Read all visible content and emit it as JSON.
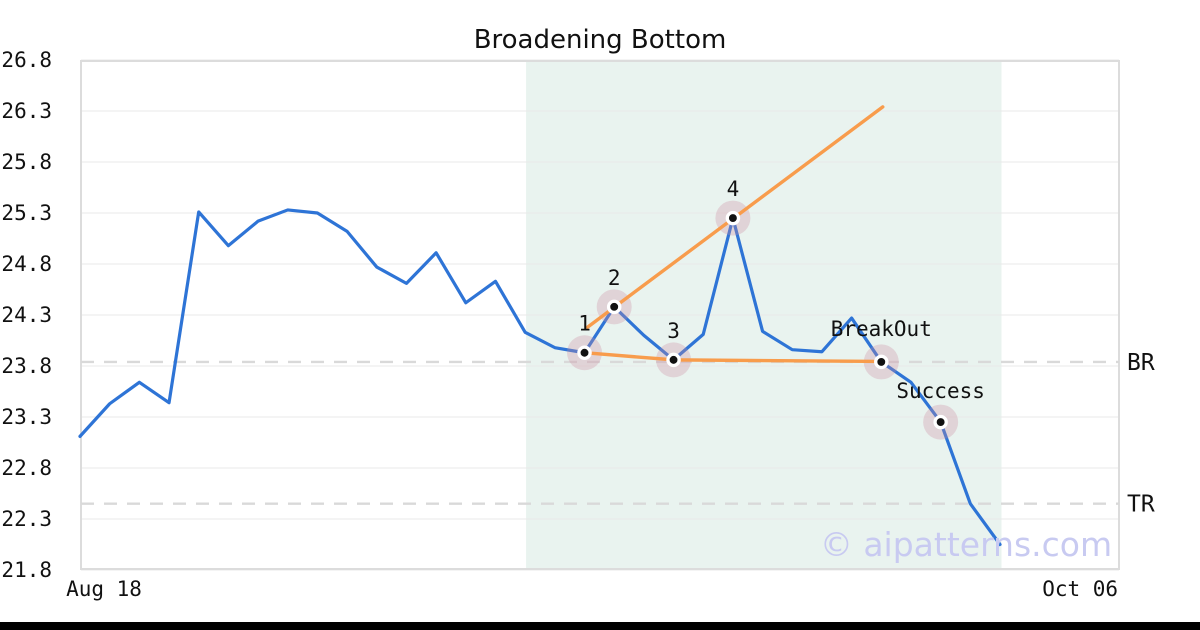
{
  "page": {
    "background": "#ffffff",
    "bottom_bar_color": "#000000"
  },
  "chart_data": {
    "type": "line",
    "title": "Broadening Bottom",
    "watermark": "© aipatterns.com",
    "colors": {
      "price_line": "#2e74d6",
      "trendline": "#f89c4c",
      "marker_dot": "#111111",
      "marker_halo": "rgba(205,140,160,0.30)",
      "shaded_region": "#e9f3ef",
      "gridline": "#e9e9e9",
      "plot_border": "#dcdcdc",
      "dashed_level": "#d9d9d9",
      "watermark": "#c8caf1",
      "text": "#111111"
    },
    "ylim": [
      21.8,
      26.8
    ],
    "y_ticks": [
      {
        "label": "26.8",
        "value": 26.8
      },
      {
        "label": "26.3",
        "value": 26.3
      },
      {
        "label": "25.8",
        "value": 25.8
      },
      {
        "label": "25.3",
        "value": 25.3
      },
      {
        "label": "24.8",
        "value": 24.8
      },
      {
        "label": "24.3",
        "value": 24.3
      },
      {
        "label": "23.8",
        "value": 23.8
      },
      {
        "label": "23.3",
        "value": 23.3
      },
      {
        "label": "22.8",
        "value": 22.8
      },
      {
        "label": "22.3",
        "value": 22.3
      },
      {
        "label": "21.8",
        "value": 21.8
      }
    ],
    "x_ticks": [
      {
        "label": "Aug 18",
        "position_index": 0.81
      },
      {
        "label": "Oct 06",
        "position_index": 33.7
      }
    ],
    "series": [
      {
        "name": "price",
        "values": [
          23.11,
          23.43,
          23.64,
          23.44,
          25.31,
          24.98,
          25.22,
          25.33,
          25.3,
          25.12,
          24.77,
          24.61,
          24.91,
          24.42,
          24.63,
          24.13,
          23.98,
          23.93,
          24.38,
          24.1,
          23.86,
          24.11,
          25.25,
          24.14,
          23.96,
          23.94,
          24.27,
          23.84,
          23.64,
          23.25,
          22.45,
          22.05
        ]
      }
    ],
    "pattern_points": [
      {
        "label": "1",
        "index": 17,
        "value": 23.93
      },
      {
        "label": "2",
        "index": 18,
        "value": 24.38
      },
      {
        "label": "3",
        "index": 20,
        "value": 23.86
      },
      {
        "label": "4",
        "index": 22,
        "value": 25.25
      },
      {
        "label": "BreakOut",
        "index": 27,
        "value": 23.84
      },
      {
        "label": "Success",
        "index": 29,
        "value": 23.25
      }
    ],
    "trendlines": [
      {
        "name": "upper",
        "points": [
          [
            17.1,
            24.18
          ],
          [
            27.05,
            26.34
          ]
        ]
      },
      {
        "name": "lower",
        "points": [
          [
            17.0,
            23.93
          ],
          [
            20.0,
            23.86
          ],
          [
            27.0,
            23.845
          ]
        ]
      }
    ],
    "hlines": [
      {
        "label": "BR",
        "value": 23.84
      },
      {
        "label": "TR",
        "value": 22.45
      }
    ],
    "shaded_region": {
      "start_index": 15.03,
      "end_index": 31.05
    },
    "grid": true,
    "legend": false
  }
}
